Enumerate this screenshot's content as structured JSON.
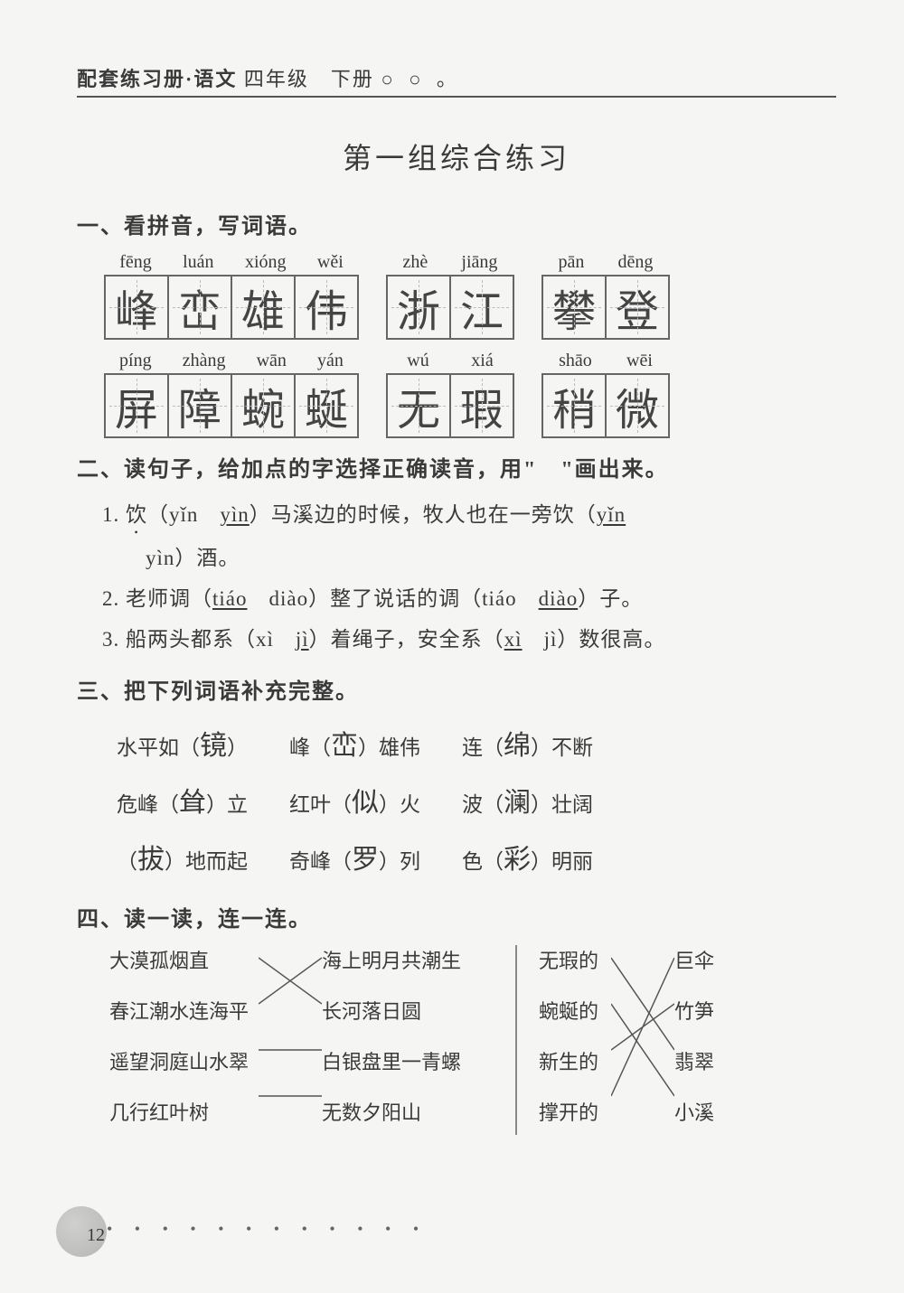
{
  "header": {
    "book": "配套练习册·语文",
    "grade": "四年级　下册",
    "dots": "○ ○ 。"
  },
  "title": "第一组综合练习",
  "sec1": {
    "heading": "一、看拼音，写词语。",
    "rows": [
      [
        {
          "pinyin": [
            "fēng",
            "luán",
            "xióng",
            "wěi"
          ],
          "chars": [
            "峰",
            "峦",
            "雄",
            "伟"
          ]
        },
        {
          "pinyin": [
            "zhè",
            "jiāng"
          ],
          "chars": [
            "浙",
            "江"
          ]
        },
        {
          "pinyin": [
            "pān",
            "dēng"
          ],
          "chars": [
            "攀",
            "登"
          ]
        }
      ],
      [
        {
          "pinyin": [
            "píng",
            "zhàng",
            "wān",
            "yán"
          ],
          "chars": [
            "屏",
            "障",
            "蜿",
            "蜒"
          ]
        },
        {
          "pinyin": [
            "wú",
            "xiá"
          ],
          "chars": [
            "无",
            "瑕"
          ]
        },
        {
          "pinyin": [
            "shāo",
            "wēi"
          ],
          "chars": [
            "稍",
            "微"
          ]
        }
      ]
    ]
  },
  "sec2": {
    "heading": "二、读句子，给加点的字选择正确读音，用\"　\"画出来。",
    "items": [
      {
        "n": "1.",
        "pre": "饮",
        "p1": "yǐn",
        "p2": "yìn",
        "mid": "）马溪边的时候，牧人也在一旁饮（",
        "p3": "yǐn",
        "tail1": "",
        "line2": "yìn）酒。"
      },
      {
        "n": "2.",
        "text_a": "老师调（",
        "a1": "tiáo",
        "a2": "diào",
        "mid": "）整了说话的调（tiáo　",
        "b2": "diào",
        "tail": "）子。"
      },
      {
        "n": "3.",
        "text_a": "船两头都系（xì　",
        "a2": "jì",
        "mid": "）着绳子，安全系（",
        "b1": "xì",
        "tail": "　jì）数很高。"
      }
    ]
  },
  "sec3": {
    "heading": "三、把下列词语补充完整。",
    "rows": [
      [
        "水平如（",
        "镜",
        "）",
        "峰（",
        "峦",
        "）雄伟",
        "连（",
        "绵",
        "）不断"
      ],
      [
        "危峰（",
        "耸",
        "）立",
        "红叶（",
        "似",
        "）火",
        "波（",
        "澜",
        "）壮阔"
      ],
      [
        "（",
        "拔",
        "）地而起",
        "奇峰（",
        "罗",
        "）列",
        "色（",
        "彩",
        "）明丽"
      ]
    ]
  },
  "sec4": {
    "heading": "四、读一读，连一连。",
    "left_a": [
      "大漠孤烟直",
      "春江潮水连海平",
      "遥望洞庭山水翠",
      "几行红叶树"
    ],
    "left_b": [
      "海上明月共潮生",
      "长河落日圆",
      "白银盘里一青螺",
      "无数夕阳山"
    ],
    "right_a": [
      "无瑕的",
      "蜿蜒的",
      "新生的",
      "撑开的"
    ],
    "right_b": [
      "巨伞",
      "竹笋",
      "翡翠",
      "小溪"
    ],
    "left_map": [
      [
        0,
        1
      ],
      [
        1,
        0
      ],
      [
        2,
        2
      ],
      [
        3,
        3
      ]
    ],
    "right_map": [
      [
        0,
        2
      ],
      [
        1,
        3
      ],
      [
        2,
        1
      ],
      [
        3,
        0
      ]
    ]
  },
  "page_number": "12"
}
